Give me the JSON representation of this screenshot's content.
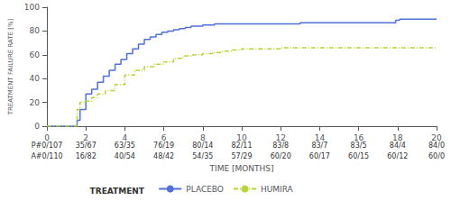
{
  "chart_data": {
    "type": "step",
    "ylabel": "TREATMENT FAILURE RATE [%]",
    "xlabel": "TIME [MONTHS]",
    "xlim": [
      0,
      20
    ],
    "ylim": [
      0,
      100
    ],
    "xticks": [
      0,
      2,
      4,
      6,
      8,
      10,
      12,
      14,
      16,
      18,
      20
    ],
    "yticks": [
      0,
      20,
      40,
      60,
      80,
      100
    ],
    "grid": false,
    "legend": "bottom",
    "legend_title": "TREATMENT",
    "series": [
      {
        "name": "PLACEBO",
        "line_style": "solid",
        "x": [
          0,
          1.5,
          1.55,
          1.7,
          2.0,
          2.3,
          2.6,
          2.9,
          3.2,
          3.5,
          3.8,
          4.1,
          4.4,
          4.7,
          5.0,
          5.3,
          5.6,
          5.9,
          6.2,
          6.5,
          6.8,
          7.1,
          7.4,
          7.7,
          8.0,
          8.3,
          8.6,
          9.0,
          9.5,
          10.0,
          10.5,
          11.0,
          11.5,
          12.0,
          13.0,
          14.0,
          15.0,
          16.0,
          17.0,
          17.9,
          18.1,
          19.0,
          20.0
        ],
        "values": [
          0,
          0,
          5,
          14,
          27,
          31,
          37,
          42,
          47,
          52,
          56,
          61,
          65,
          69,
          73,
          75,
          77,
          79,
          80,
          81,
          82,
          83,
          84,
          84,
          85,
          85,
          86,
          86,
          86,
          86,
          86,
          86,
          86,
          86,
          87,
          87,
          87,
          87,
          87,
          89,
          90,
          90,
          90
        ]
      },
      {
        "name": "HUMIRA",
        "line_style": "dashdot",
        "x": [
          0,
          1.5,
          1.55,
          1.7,
          2.0,
          2.3,
          2.6,
          3.0,
          3.5,
          4.0,
          4.5,
          5.0,
          5.5,
          6.0,
          6.5,
          7.0,
          7.5,
          8.0,
          8.5,
          9.0,
          9.5,
          10.0,
          11.0,
          12.0,
          13.0,
          14.0,
          15.0,
          16.0,
          17.0,
          18.0,
          19.0,
          20.0
        ],
        "values": [
          0,
          0,
          14,
          20,
          21,
          24,
          27,
          30,
          35,
          43,
          47,
          50,
          52,
          54,
          57,
          59,
          60,
          61,
          62,
          63,
          64,
          65,
          65,
          66,
          66,
          66,
          66,
          66,
          66,
          66,
          66,
          66
        ]
      }
    ],
    "table": {
      "x": [
        0,
        2,
        4,
        6,
        8,
        10,
        12,
        14,
        16,
        18,
        20
      ],
      "rows": [
        [
          "P#0/107",
          "35/67",
          "63/35",
          "76/19",
          "80/14",
          "82/11",
          "83/8",
          "83/7",
          "83/5",
          "84/4",
          "84/0"
        ],
        [
          "A#0/110",
          "16/82",
          "40/54",
          "48/42",
          "54/35",
          "57/29",
          "60/20",
          "60/17",
          "60/15",
          "60/12",
          "60/0"
        ]
      ]
    }
  }
}
